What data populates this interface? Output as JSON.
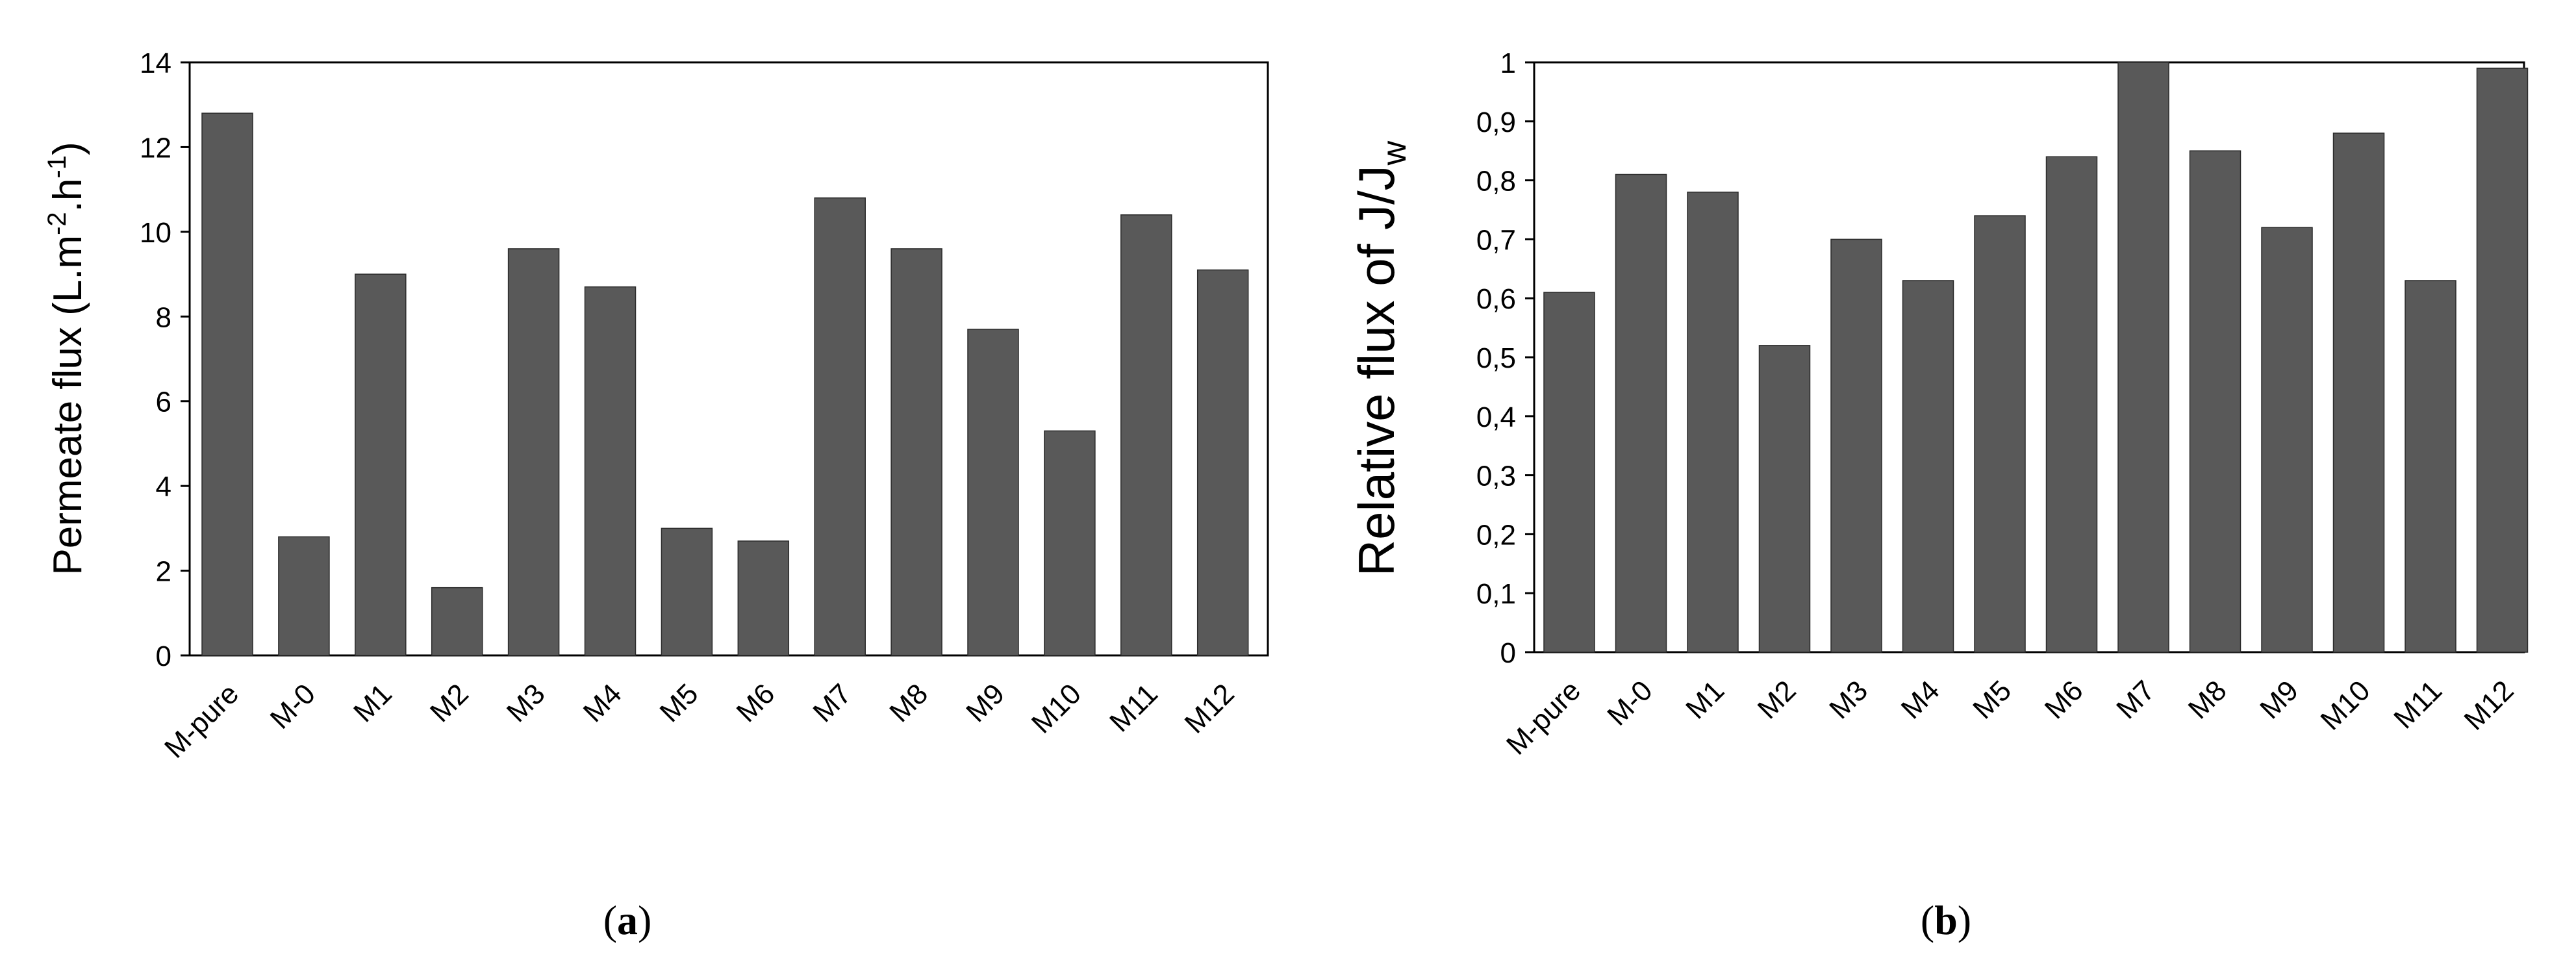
{
  "chart_data": [
    {
      "type": "bar",
      "caption": "a",
      "categories": [
        "M-pure",
        "M-0",
        "M1",
        "M2",
        "M3",
        "M4",
        "M5",
        "M6",
        "M7",
        "M8",
        "M9",
        "M10",
        "M11",
        "M12"
      ],
      "values": [
        12.8,
        2.8,
        9.0,
        1.6,
        9.6,
        8.7,
        3.0,
        2.7,
        10.8,
        9.6,
        7.7,
        5.3,
        10.4,
        9.1
      ],
      "ylabel_main": "Permeate flux (L.m",
      "ylabel_sup1": "-2",
      "ylabel_mid": ".h",
      "ylabel_sup2": "-1",
      "ylabel_end": ")",
      "ylim": [
        0,
        14
      ],
      "yticks": [
        "0",
        "2",
        "4",
        "6",
        "8",
        "10",
        "12",
        "14"
      ],
      "grid": false,
      "bar_color": "#595959"
    },
    {
      "type": "bar",
      "caption": "b",
      "categories": [
        "M-pure",
        "M-0",
        "M1",
        "M2",
        "M3",
        "M4",
        "M5",
        "M6",
        "M7",
        "M8",
        "M9",
        "M10",
        "M11",
        "M12"
      ],
      "values": [
        0.61,
        0.81,
        0.78,
        0.52,
        0.7,
        0.63,
        0.74,
        0.84,
        1.0,
        0.85,
        0.72,
        0.88,
        0.63,
        0.99
      ],
      "ylabel_main": "Relative  flux of   J/J",
      "ylabel_sub": "w",
      "ylim": [
        0,
        1
      ],
      "yticks": [
        "0",
        "0,1",
        "0,2",
        "0,3",
        "0,4",
        "0,5",
        "0,6",
        "0,7",
        "0,8",
        "0,9",
        "1"
      ],
      "grid": false,
      "bar_color": "#595959"
    }
  ]
}
